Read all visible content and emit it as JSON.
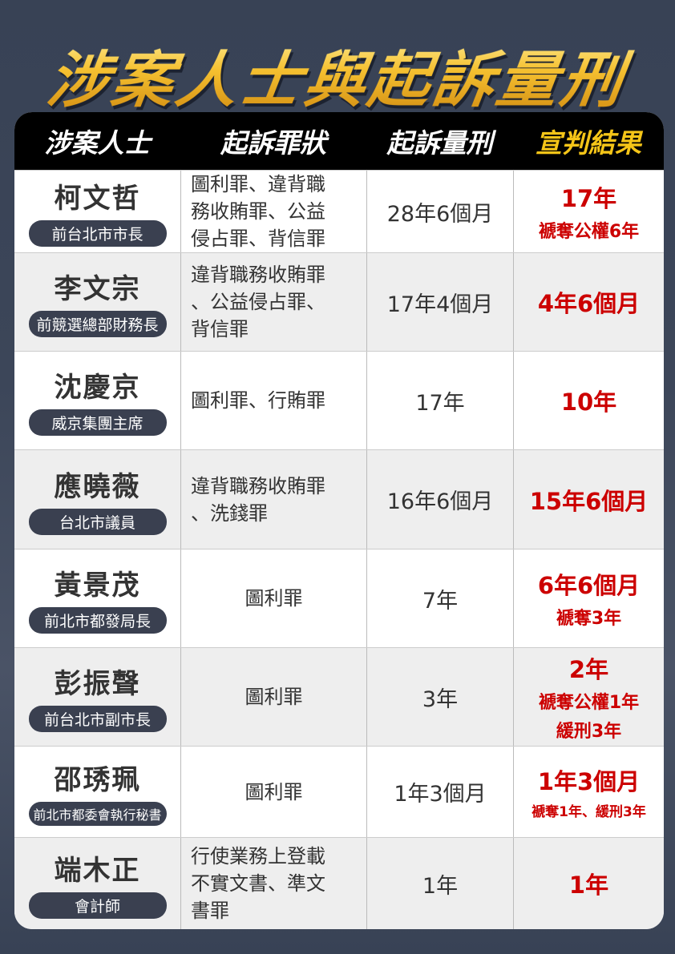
{
  "title": "涉案人士與起訴量刑",
  "headers": [
    "涉案人士",
    "起訴罪狀",
    "起訴量刑",
    "宣判結果"
  ],
  "rows": [
    {
      "name": "柯文哲",
      "role": "前台北市市長",
      "charges": [
        "圖利罪、違背職",
        "務收賄罪、公益",
        "侵占罪、背信罪"
      ],
      "proposed": "28年6個月",
      "verdict": [
        "17年",
        "褫奪公權6年"
      ]
    },
    {
      "name": "李文宗",
      "role": "前競選總部財務長",
      "charges": [
        "違背職務收賄罪",
        "、公益侵占罪、",
        "背信罪"
      ],
      "proposed": "17年4個月",
      "verdict": [
        "4年6個月"
      ]
    },
    {
      "name": "沈慶京",
      "role": "威京集團主席",
      "charges": [
        "圖利罪、行賄罪"
      ],
      "proposed": "17年",
      "verdict": [
        "10年"
      ]
    },
    {
      "name": "應曉薇",
      "role": "台北市議員",
      "charges": [
        "違背職務收賄罪",
        "、洗錢罪"
      ],
      "proposed": "16年6個月",
      "verdict": [
        "15年6個月"
      ]
    },
    {
      "name": "黃景茂",
      "role": "前北市都發局長",
      "charges": [
        "圖利罪"
      ],
      "proposed": "7年",
      "verdict": [
        "6年6個月",
        "褫奪3年"
      ]
    },
    {
      "name": "彭振聲",
      "role": "前台北市副市長",
      "charges": [
        "圖利罪"
      ],
      "proposed": "3年",
      "verdict": [
        "2年",
        "褫奪公權1年",
        "緩刑3年"
      ]
    },
    {
      "name": "邵琇珮",
      "role": "前北市都委會執行秘書",
      "charges": [
        "圖利罪"
      ],
      "proposed": "1年3個月",
      "verdict": [
        "1年3個月",
        "褫奪1年、緩刑3年"
      ]
    },
    {
      "name": "端木正",
      "role": "會計師",
      "charges": [
        "行使業務上登載",
        "不實文書、準文",
        "書罪"
      ],
      "proposed": "1年",
      "verdict": [
        "1年"
      ]
    }
  ]
}
